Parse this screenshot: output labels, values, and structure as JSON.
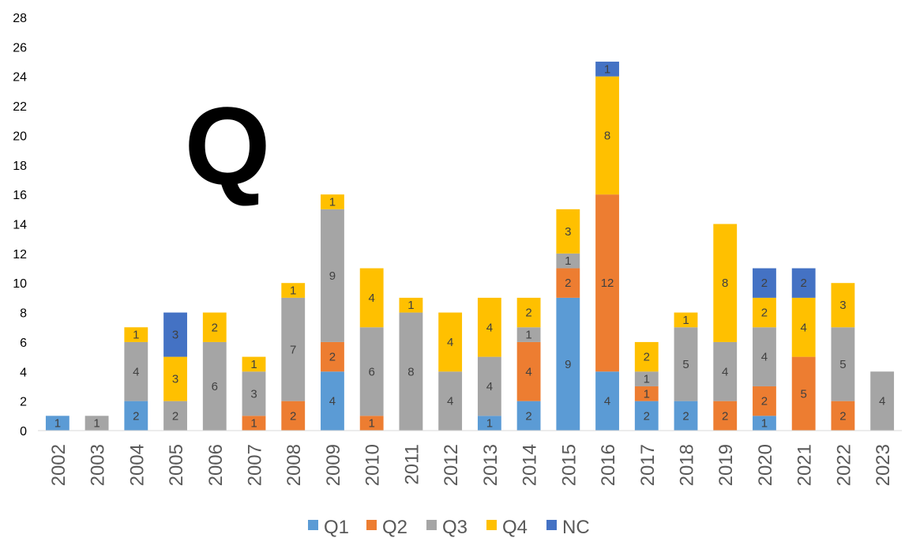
{
  "chart_data": {
    "type": "bar",
    "stacked": true,
    "categories": [
      "2002",
      "2003",
      "2004",
      "2005",
      "2006",
      "2007",
      "2008",
      "2009",
      "2010",
      "2011",
      "2012",
      "2013",
      "2014",
      "2015",
      "2016",
      "2017",
      "2018",
      "2019",
      "2020",
      "2021",
      "2022",
      "2023"
    ],
    "series": [
      {
        "name": "Q1",
        "color": "#5B9BD5",
        "values": [
          1,
          0,
          2,
          0,
          0,
          0,
          0,
          4,
          0,
          0,
          0,
          1,
          2,
          9,
          4,
          2,
          2,
          0,
          1,
          0,
          0,
          0
        ]
      },
      {
        "name": "Q2",
        "color": "#ED7D31",
        "values": [
          0,
          0,
          0,
          0,
          0,
          1,
          2,
          2,
          1,
          0,
          0,
          0,
          4,
          2,
          12,
          1,
          0,
          2,
          2,
          5,
          2,
          0
        ]
      },
      {
        "name": "Q3",
        "color": "#A5A5A5",
        "values": [
          0,
          1,
          4,
          2,
          6,
          3,
          7,
          9,
          6,
          8,
          4,
          4,
          1,
          1,
          0,
          1,
          5,
          4,
          4,
          0,
          5,
          4
        ]
      },
      {
        "name": "Q4",
        "color": "#FFC000",
        "values": [
          0,
          0,
          1,
          3,
          2,
          1,
          1,
          1,
          4,
          1,
          4,
          4,
          2,
          3,
          8,
          2,
          1,
          8,
          2,
          4,
          3,
          0
        ]
      },
      {
        "name": "NC",
        "color": "#4472C4",
        "values": [
          0,
          0,
          0,
          3,
          0,
          0,
          0,
          0,
          0,
          0,
          0,
          0,
          0,
          0,
          1,
          0,
          0,
          0,
          2,
          2,
          0,
          0
        ]
      }
    ],
    "yticks": [
      0,
      2,
      4,
      6,
      8,
      10,
      12,
      14,
      16,
      18,
      20,
      22,
      24,
      26,
      28
    ],
    "ylim": [
      0,
      28
    ],
    "annotation": "Q",
    "legend_position": "bottom",
    "grid": false
  }
}
